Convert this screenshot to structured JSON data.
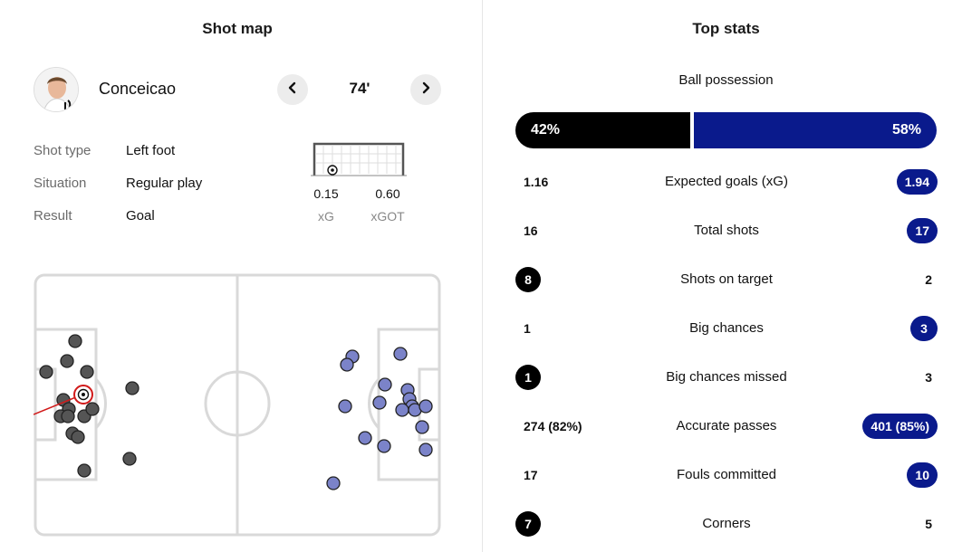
{
  "shot_map": {
    "title": "Shot map",
    "player": {
      "name": "Conceicao"
    },
    "minute": "74'",
    "details": [
      {
        "label": "Shot type",
        "value": "Left foot"
      },
      {
        "label": "Situation",
        "value": "Regular play"
      },
      {
        "label": "Result",
        "value": "Goal"
      }
    ],
    "xg": {
      "value": "0.15",
      "label": "xG"
    },
    "xgot": {
      "value": "0.60",
      "label": "xGOT"
    },
    "colors": {
      "home_shot": "#555555",
      "away_shot": "#7b83c9",
      "selected_line": "#d11a1a"
    }
  },
  "top_stats": {
    "title": "Top stats",
    "possession": {
      "label": "Ball possession",
      "home": "42%",
      "away": "58%",
      "home_value": 42,
      "away_value": 58
    },
    "rows": [
      {
        "label": "Expected goals (xG)",
        "home": "1.16",
        "away": "1.94",
        "highlight": "away"
      },
      {
        "label": "Total shots",
        "home": "16",
        "away": "17",
        "highlight": "away"
      },
      {
        "label": "Shots on target",
        "home": "8",
        "away": "2",
        "highlight": "home"
      },
      {
        "label": "Big chances",
        "home": "1",
        "away": "3",
        "highlight": "away"
      },
      {
        "label": "Big chances missed",
        "home": "1",
        "away": "3",
        "highlight": "home"
      },
      {
        "label": "Accurate passes",
        "home": "274 (82%)",
        "away": "401 (85%)",
        "highlight": "away"
      },
      {
        "label": "Fouls committed",
        "home": "17",
        "away": "10",
        "highlight": "away"
      },
      {
        "label": "Corners",
        "home": "7",
        "away": "5",
        "highlight": "home"
      }
    ],
    "colors": {
      "home": "#000000",
      "away": "#0a1a8c"
    }
  }
}
